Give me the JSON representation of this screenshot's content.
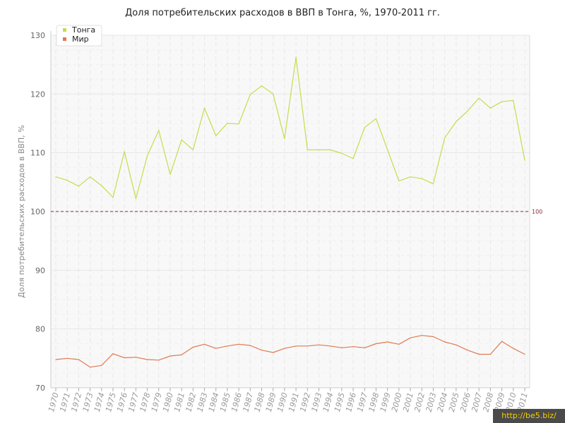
{
  "chart_data": {
    "type": "line",
    "title": "Доля потребительских расходов в ВВП в Тонга, %, 1970-2011 гг.",
    "xlabel": "",
    "ylabel": "Доля потребительских расходов в ВВП, %",
    "ylim": [
      70,
      130
    ],
    "yticks": [
      70,
      80,
      90,
      100,
      110,
      120,
      130
    ],
    "grid": true,
    "legend_position": "top-left",
    "reference_line": {
      "value": 100,
      "label": "100",
      "color": "#8b2a35",
      "style": "dashed"
    },
    "x": [
      "1970",
      "1971",
      "1972",
      "1973",
      "1974",
      "1975",
      "1976",
      "1977",
      "1978",
      "1979",
      "1980",
      "1981",
      "1982",
      "1983",
      "1984",
      "1985",
      "1986",
      "1987",
      "1988",
      "1989",
      "1990",
      "1991",
      "1992",
      "1993",
      "1994",
      "1995",
      "1996",
      "1997",
      "1998",
      "1999",
      "2000",
      "2001",
      "2002",
      "2003",
      "2004",
      "2005",
      "2006",
      "2007",
      "2008",
      "2009",
      "2010",
      "2011"
    ],
    "series": [
      {
        "name": "Тонга",
        "color": "#c6dc4b",
        "values": [
          105.9,
          105.3,
          104.3,
          105.9,
          104.4,
          102.4,
          110.2,
          102.2,
          109.5,
          113.8,
          106.3,
          112.2,
          110.5,
          117.6,
          112.9,
          115.0,
          114.9,
          119.9,
          121.4,
          120.0,
          112.4,
          126.3,
          110.5,
          110.5,
          110.5,
          109.9,
          109.0,
          114.3,
          115.8,
          110.5,
          105.2,
          105.9,
          105.6,
          104.7,
          112.5,
          115.3,
          117.1,
          119.3,
          117.6,
          118.7,
          118.9,
          108.7
        ]
      },
      {
        "name": "Мир",
        "color": "#e07a50",
        "values": [
          74.8,
          75.0,
          74.8,
          73.5,
          73.8,
          75.8,
          75.1,
          75.2,
          74.8,
          74.7,
          75.4,
          75.6,
          76.9,
          77.4,
          76.7,
          77.1,
          77.4,
          77.2,
          76.4,
          76.0,
          76.7,
          77.1,
          77.1,
          77.3,
          77.1,
          76.8,
          77.0,
          76.8,
          77.5,
          77.8,
          77.4,
          78.5,
          78.9,
          78.7,
          77.8,
          77.3,
          76.4,
          75.7,
          75.7,
          77.9,
          76.7,
          75.7
        ]
      }
    ]
  },
  "watermark": "http://be5.biz/"
}
